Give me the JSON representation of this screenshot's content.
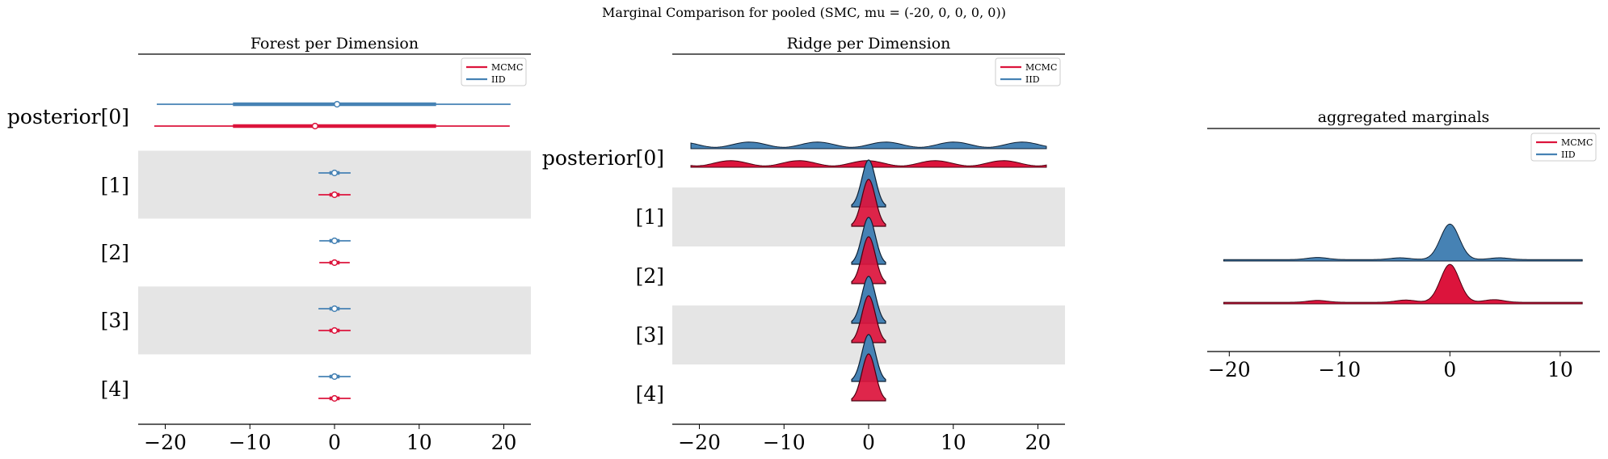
{
  "figure": {
    "title": "Marginal Comparison for pooled (SMC, mu = (-20, 0, 0, 0, 0))"
  },
  "colors": {
    "mcmc": "#dc143c",
    "iid": "#4682b4",
    "band": "#e5e5e5"
  },
  "chart_data": [
    {
      "type": "forest",
      "title": "Forest per Dimension",
      "xlim": [
        -23.2,
        23.2
      ],
      "xticks": [
        -20,
        -10,
        0,
        10,
        20
      ],
      "xtick_labels": [
        "−20",
        "−10",
        "0",
        "10",
        "20"
      ],
      "y_labels": [
        "posterior[0]",
        "[1]",
        "[2]",
        "[3]",
        "[4]"
      ],
      "legend": {
        "placement": "top-right",
        "entries": [
          "MCMC",
          "IID"
        ]
      },
      "series": [
        {
          "name": "MCMC",
          "color": "#dc143c",
          "rows": [
            {
              "hdi94": [
                -21.3,
                20.7
              ],
              "iqr": [
                -12.0,
                12.0
              ],
              "point": -2.3
            },
            {
              "hdi94": [
                -1.9,
                1.9
              ],
              "iqr": [
                -0.6,
                0.6
              ],
              "point": 0.0
            },
            {
              "hdi94": [
                -1.8,
                1.8
              ],
              "iqr": [
                -0.6,
                0.6
              ],
              "point": 0.0
            },
            {
              "hdi94": [
                -1.9,
                1.9
              ],
              "iqr": [
                -0.6,
                0.6
              ],
              "point": 0.0
            },
            {
              "hdi94": [
                -1.9,
                1.9
              ],
              "iqr": [
                -0.6,
                0.6
              ],
              "point": 0.0
            }
          ]
        },
        {
          "name": "IID",
          "color": "#4682b4",
          "rows": [
            {
              "hdi94": [
                -21.0,
                20.8
              ],
              "iqr": [
                -12.0,
                12.0
              ],
              "point": 0.3
            },
            {
              "hdi94": [
                -1.9,
                1.9
              ],
              "iqr": [
                -0.6,
                0.6
              ],
              "point": 0.0
            },
            {
              "hdi94": [
                -1.8,
                1.9
              ],
              "iqr": [
                -0.6,
                0.6
              ],
              "point": 0.0
            },
            {
              "hdi94": [
                -1.9,
                1.9
              ],
              "iqr": [
                -0.6,
                0.6
              ],
              "point": 0.0
            },
            {
              "hdi94": [
                -1.9,
                1.9
              ],
              "iqr": [
                -0.6,
                0.6
              ],
              "point": 0.0
            }
          ]
        }
      ]
    },
    {
      "type": "ridge",
      "title": "Ridge per Dimension",
      "xlim": [
        -23.2,
        23.2
      ],
      "xticks": [
        -20,
        -10,
        0,
        10,
        20
      ],
      "xtick_labels": [
        "−20",
        "−10",
        "0",
        "10",
        "20"
      ],
      "y_labels": [
        "posterior[0]",
        "[1]",
        "[2]",
        "[3]",
        "[4]"
      ],
      "legend": {
        "placement": "top-right",
        "entries": [
          "MCMC",
          "IID"
        ]
      },
      "series": [
        {
          "name": "MCMC",
          "color": "#dc143c",
          "densities": [
            {
              "kind": "wavy",
              "range": [
                -21,
                21
              ],
              "center": -2.3
            },
            {
              "kind": "gauss",
              "range": [
                -2,
                2
              ],
              "mu": 0,
              "sigma": 0.8
            },
            {
              "kind": "gauss",
              "range": [
                -2,
                2
              ],
              "mu": 0,
              "sigma": 0.8
            },
            {
              "kind": "gauss",
              "range": [
                -2,
                2
              ],
              "mu": 0,
              "sigma": 0.8
            },
            {
              "kind": "gauss",
              "range": [
                -2,
                2
              ],
              "mu": 0,
              "sigma": 0.8
            }
          ]
        },
        {
          "name": "IID",
          "color": "#4682b4",
          "densities": [
            {
              "kind": "wavy",
              "range": [
                -21,
                21
              ],
              "center": 0.3
            },
            {
              "kind": "gauss",
              "range": [
                -2,
                2
              ],
              "mu": 0,
              "sigma": 0.8
            },
            {
              "kind": "gauss",
              "range": [
                -2,
                2
              ],
              "mu": 0,
              "sigma": 0.8
            },
            {
              "kind": "gauss",
              "range": [
                -2,
                2
              ],
              "mu": 0,
              "sigma": 0.8
            },
            {
              "kind": "gauss",
              "range": [
                -2,
                2
              ],
              "mu": 0,
              "sigma": 0.8
            }
          ]
        }
      ]
    },
    {
      "type": "ridge",
      "title": "aggregated marginals",
      "xlim": [
        -22.0,
        13.6
      ],
      "xticks": [
        -20,
        -10,
        0,
        10
      ],
      "xtick_labels": [
        "−20",
        "−10",
        "0",
        "10"
      ],
      "y_labels": [],
      "legend": {
        "placement": "top-right",
        "entries": [
          "MCMC",
          "IID"
        ]
      },
      "series": [
        {
          "name": "IID",
          "color": "#4682b4",
          "range": [
            -20.5,
            12.0
          ],
          "peak": {
            "mu": 0.0,
            "sigma": 0.85,
            "height": 1.0
          },
          "bumps": [
            {
              "mu": -12.0,
              "height": 0.06
            },
            {
              "mu": -4.5,
              "height": 0.05
            },
            {
              "mu": 4.5,
              "height": 0.05
            }
          ],
          "baseline": 0.04
        },
        {
          "name": "MCMC",
          "color": "#dc143c",
          "range": [
            -20.5,
            12.0
          ],
          "peak": {
            "mu": 0.0,
            "sigma": 0.85,
            "height": 1.0
          },
          "bumps": [
            {
              "mu": -12.0,
              "height": 0.05
            },
            {
              "mu": -4.0,
              "height": 0.06
            },
            {
              "mu": 4.0,
              "height": 0.07
            }
          ],
          "baseline": 0.04
        }
      ]
    }
  ]
}
